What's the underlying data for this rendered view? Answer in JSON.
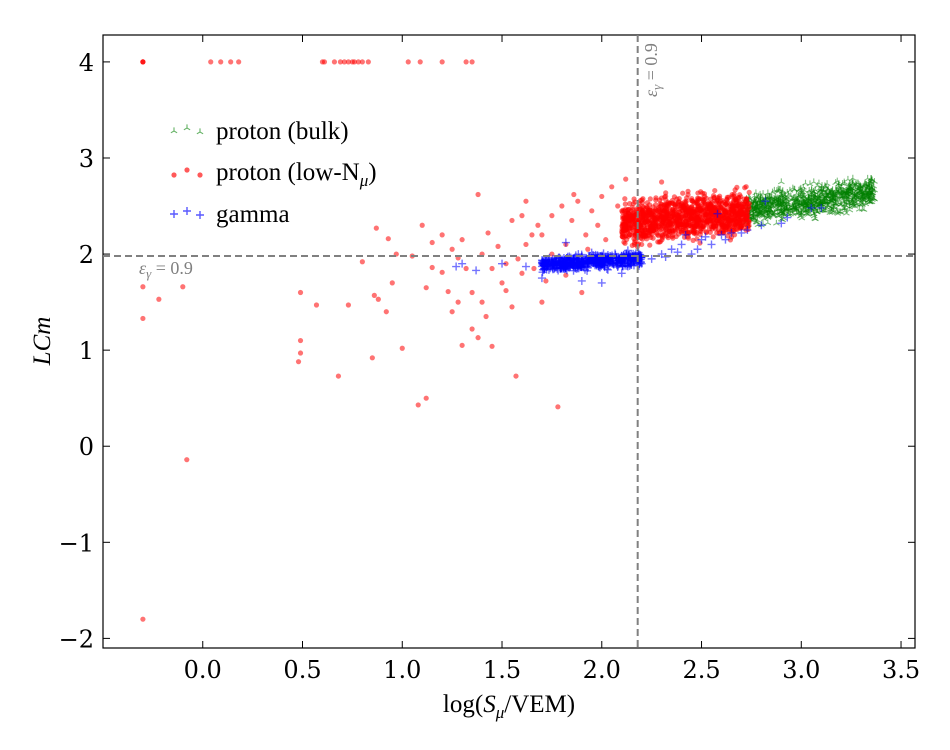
{
  "chart_data": {
    "type": "scatter",
    "title": "",
    "xlabel": "log(S_μ/VEM)",
    "xlabel_parts": {
      "prefix": "log(",
      "italic": "S",
      "subscript": "μ",
      "suffix": "/VEM)"
    },
    "ylabel": "LCm",
    "xlim": [
      -0.5,
      3.57
    ],
    "ylim": [
      -2.1,
      4.28
    ],
    "x_ticks": [
      0.0,
      0.5,
      1.0,
      1.5,
      2.0,
      2.5,
      3.0,
      3.5
    ],
    "x_tick_labels": [
      "0.0",
      "0.5",
      "1.0",
      "1.5",
      "2.0",
      "2.5",
      "3.0",
      "3.5"
    ],
    "y_ticks": [
      -2,
      -1,
      0,
      1,
      2,
      3,
      4
    ],
    "y_tick_labels": [
      "−2",
      "−1",
      "0",
      "1",
      "2",
      "3",
      "4"
    ],
    "grid": false,
    "legend_position": "upper-left",
    "reference_lines": [
      {
        "orientation": "vertical",
        "value": 2.18,
        "label": "εγ = 0.9",
        "label_main": "ε",
        "label_sub": "γ",
        "label_rest": " = 0.9",
        "color": "#808080"
      },
      {
        "orientation": "horizontal",
        "value": 1.98,
        "label": "εγ = 0.9",
        "label_main": "ε",
        "label_sub": "γ",
        "label_rest": " = 0.9",
        "color": "#808080"
      }
    ],
    "series": [
      {
        "name": "proton (bulk)",
        "legend_text": "proton (bulk)",
        "marker": "tri",
        "color": "#008000",
        "opacity": 0.5,
        "cloud": {
          "x_range": [
            2.72,
            3.37
          ],
          "y_center": 2.55,
          "y_spread": 0.14,
          "slope": 0.3,
          "count": 900
        },
        "points": [
          [
            2.75,
            2.35
          ],
          [
            2.8,
            2.3
          ],
          [
            3.3,
            2.7
          ],
          [
            3.35,
            2.58
          ],
          [
            2.9,
            2.75
          ],
          [
            3.0,
            2.4
          ]
        ]
      },
      {
        "name": "proton (low-Nμ)",
        "legend_text": "proton (low-N",
        "legend_sub": "μ",
        "legend_tail": ")",
        "marker": "circle",
        "color": "#ff0000",
        "opacity": 0.55,
        "cloud": {
          "x_range": [
            2.1,
            2.74
          ],
          "y_center": 2.38,
          "y_spread": 0.2,
          "slope": 0.2,
          "count": 1200
        },
        "points": [
          [
            -0.3,
            4.0
          ],
          [
            -0.3,
            4.0
          ],
          [
            -0.3,
            4.0
          ],
          [
            0.04,
            4.0
          ],
          [
            0.09,
            4.0
          ],
          [
            0.14,
            4.0
          ],
          [
            0.18,
            4.0
          ],
          [
            0.6,
            4.0
          ],
          [
            0.61,
            4.0
          ],
          [
            0.66,
            4.0
          ],
          [
            0.69,
            4.0
          ],
          [
            0.71,
            4.0
          ],
          [
            0.73,
            4.0
          ],
          [
            0.75,
            4.0
          ],
          [
            0.76,
            4.0
          ],
          [
            0.78,
            4.0
          ],
          [
            0.8,
            4.0
          ],
          [
            0.83,
            4.0
          ],
          [
            1.03,
            4.0
          ],
          [
            1.09,
            4.0
          ],
          [
            1.2,
            4.0
          ],
          [
            1.32,
            4.0
          ],
          [
            1.35,
            4.0
          ],
          [
            -0.3,
            1.66
          ],
          [
            -0.3,
            1.33
          ],
          [
            -0.22,
            1.53
          ],
          [
            -0.1,
            1.66
          ],
          [
            -0.08,
            -0.14
          ],
          [
            -0.3,
            -1.8
          ],
          [
            0.48,
            0.88
          ],
          [
            0.49,
            1.1
          ],
          [
            0.49,
            0.97
          ],
          [
            0.49,
            1.6
          ],
          [
            0.57,
            1.47
          ],
          [
            0.68,
            0.73
          ],
          [
            0.73,
            1.47
          ],
          [
            0.8,
            1.92
          ],
          [
            0.85,
            0.92
          ],
          [
            0.86,
            1.57
          ],
          [
            0.87,
            2.27
          ],
          [
            0.88,
            1.53
          ],
          [
            0.92,
            1.4
          ],
          [
            0.97,
            2.0
          ],
          [
            1.0,
            1.02
          ],
          [
            1.05,
            1.98
          ],
          [
            1.08,
            0.43
          ],
          [
            1.12,
            0.5
          ],
          [
            1.1,
            2.3
          ],
          [
            1.15,
            2.12
          ],
          [
            1.2,
            1.81
          ],
          [
            1.23,
            1.61
          ],
          [
            1.25,
            1.4
          ],
          [
            1.28,
            1.5
          ],
          [
            1.3,
            1.05
          ],
          [
            1.32,
            1.85
          ],
          [
            1.35,
            1.22
          ],
          [
            1.38,
            1.13
          ],
          [
            1.4,
            1.5
          ],
          [
            1.42,
            1.35
          ],
          [
            1.45,
            1.04
          ],
          [
            1.5,
            1.7
          ],
          [
            1.52,
            1.9
          ],
          [
            1.55,
            1.45
          ],
          [
            1.57,
            0.73
          ],
          [
            1.6,
            1.8
          ],
          [
            1.62,
            2.1
          ],
          [
            1.65,
            2.2
          ],
          [
            1.68,
            2.3
          ],
          [
            1.7,
            1.5
          ],
          [
            1.72,
            1.72
          ],
          [
            1.75,
            2.4
          ],
          [
            1.78,
            0.41
          ],
          [
            1.8,
            2.5
          ],
          [
            1.82,
            2.1
          ],
          [
            1.85,
            2.35
          ],
          [
            1.88,
            2.55
          ],
          [
            1.9,
            1.6
          ],
          [
            1.92,
            2.2
          ],
          [
            1.95,
            2.45
          ],
          [
            1.98,
            2.3
          ],
          [
            2.0,
            2.6
          ],
          [
            2.02,
            2.15
          ],
          [
            2.05,
            2.7
          ],
          [
            2.08,
            2.5
          ],
          [
            1.6,
            2.4
          ],
          [
            1.55,
            2.35
          ],
          [
            1.7,
            2.2
          ],
          [
            1.4,
            2.0
          ],
          [
            1.45,
            1.85
          ],
          [
            1.35,
            1.6
          ],
          [
            1.28,
            1.96
          ],
          [
            1.15,
            1.86
          ],
          [
            1.2,
            2.2
          ],
          [
            0.95,
            1.7
          ],
          [
            1.48,
            2.08
          ],
          [
            1.62,
            2.55
          ],
          [
            1.75,
            2.0
          ],
          [
            1.82,
            1.78
          ],
          [
            1.3,
            2.15
          ],
          [
            1.43,
            2.22
          ],
          [
            1.58,
            1.95
          ],
          [
            1.38,
            2.62
          ],
          [
            1.12,
            1.65
          ],
          [
            0.93,
            2.16
          ],
          [
            1.25,
            2.05
          ],
          [
            1.52,
            1.62
          ],
          [
            1.66,
            1.85
          ],
          [
            1.86,
            2.62
          ],
          [
            1.93,
            2.05
          ],
          [
            2.12,
            2.78
          ],
          [
            2.15,
            2.2
          ],
          [
            2.2,
            2.1
          ],
          [
            2.3,
            2.75
          ]
        ]
      },
      {
        "name": "gamma",
        "legend_text": "gamma",
        "marker": "plus",
        "color": "#0000ff",
        "opacity": 0.55,
        "cloud": {
          "x_range": [
            1.7,
            2.2
          ],
          "y_center": 1.92,
          "y_spread": 0.07,
          "slope": 0.15,
          "count": 500
        },
        "points": [
          [
            1.3,
            1.9
          ],
          [
            1.27,
            1.87
          ],
          [
            1.37,
            1.83
          ],
          [
            1.5,
            1.9
          ],
          [
            1.62,
            1.87
          ],
          [
            1.7,
            1.75
          ],
          [
            1.82,
            2.12
          ],
          [
            1.9,
            1.72
          ],
          [
            2.0,
            1.7
          ],
          [
            2.1,
            1.8
          ],
          [
            2.2,
            1.9
          ],
          [
            2.25,
            1.95
          ],
          [
            2.3,
            2.0
          ],
          [
            2.35,
            2.05
          ],
          [
            2.4,
            2.1
          ],
          [
            2.42,
            2.2
          ],
          [
            2.45,
            2.0
          ],
          [
            2.5,
            2.15
          ],
          [
            2.55,
            2.1
          ],
          [
            2.58,
            2.42
          ],
          [
            2.6,
            2.2
          ],
          [
            2.65,
            2.22
          ],
          [
            2.7,
            2.22
          ],
          [
            2.73,
            2.25
          ],
          [
            2.8,
            2.3
          ],
          [
            2.82,
            2.55
          ],
          [
            2.9,
            2.32
          ],
          [
            2.93,
            2.38
          ],
          [
            3.05,
            2.48
          ],
          [
            3.1,
            2.48
          ],
          [
            2.48,
            2.05
          ],
          [
            2.38,
            2.02
          ],
          [
            2.32,
            1.97
          ],
          [
            2.52,
            2.18
          ],
          [
            2.62,
            2.15
          ]
        ]
      }
    ]
  }
}
